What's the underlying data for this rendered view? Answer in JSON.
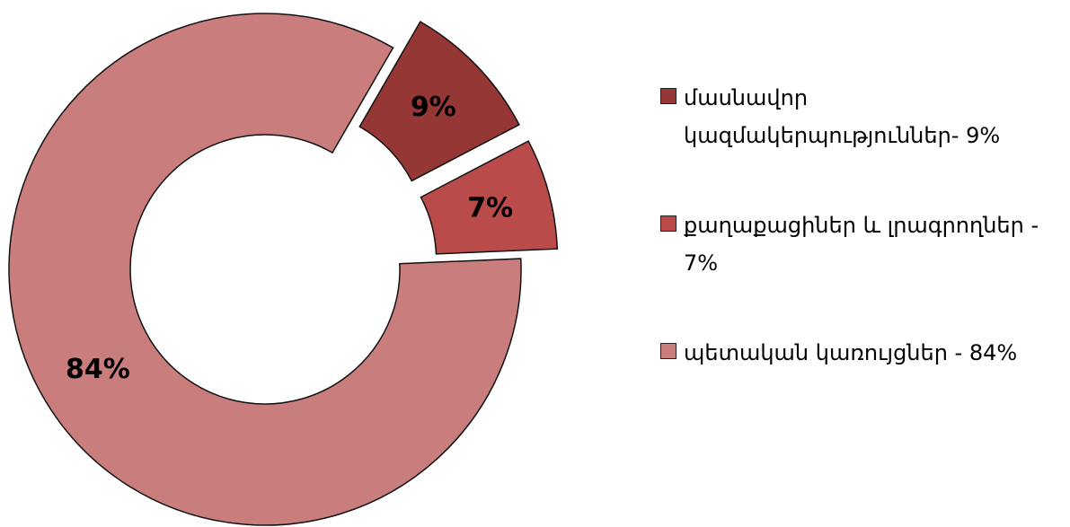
{
  "chart_data": {
    "type": "donut",
    "categories": [
      "մասնավոր կազմակերպություններ- 9%",
      "քաղաքացիներ և լրագրողներ - 7%",
      "պետական կառույցներ - 84%"
    ],
    "values": [
      9,
      7,
      84
    ],
    "value_labels": [
      "9%",
      "7%",
      "84%"
    ],
    "colors": [
      "#953735",
      "#b94c4a",
      "#c97e7d"
    ],
    "legend": "right"
  }
}
